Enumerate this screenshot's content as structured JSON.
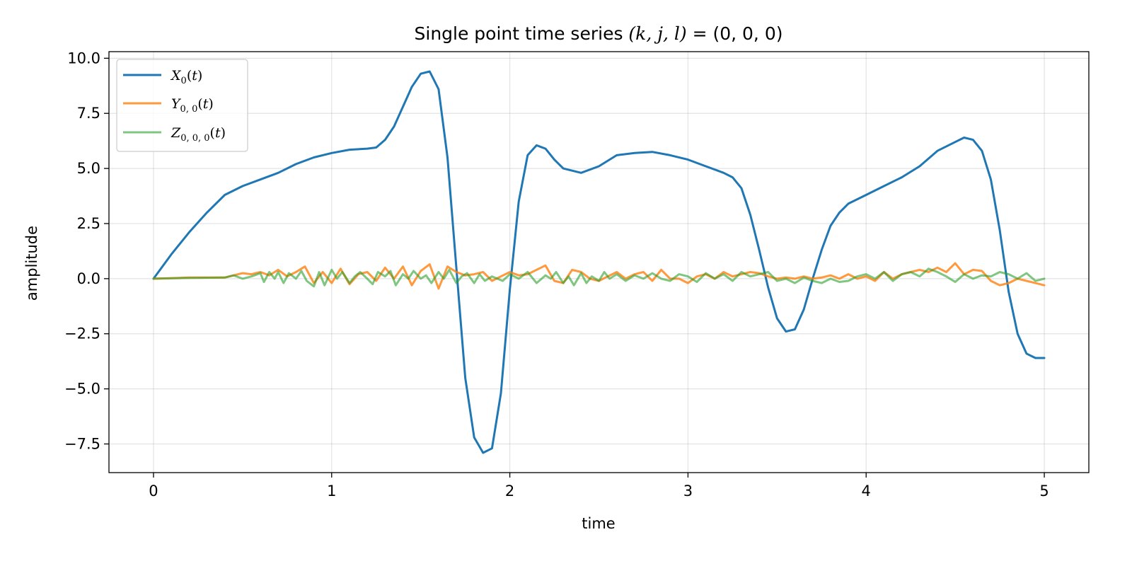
{
  "chart_data": {
    "type": "line",
    "title": "Single point time series (k, j, l) = (0, 0, 0)",
    "xlabel": "time",
    "ylabel": "amplitude",
    "xlim": [
      -0.25,
      5.25
    ],
    "ylim": [
      -8.8,
      10.3
    ],
    "x_ticks": [
      0,
      1,
      2,
      3,
      4,
      5
    ],
    "x_tick_labels": [
      "0",
      "1",
      "2",
      "3",
      "4",
      "5"
    ],
    "y_ticks": [
      10.0,
      7.5,
      5.0,
      2.5,
      0.0,
      -2.5,
      -5.0,
      -7.5
    ],
    "y_tick_labels": [
      "10.0",
      "7.5",
      "5.0",
      "2.5",
      "0.0",
      "−2.5",
      "−5.0",
      "−7.5"
    ],
    "grid": true,
    "legend_position": "top-left",
    "series": [
      {
        "name": "X_0(t)",
        "color": "#1f77b4",
        "x": [
          0,
          0.1,
          0.2,
          0.3,
          0.4,
          0.5,
          0.6,
          0.7,
          0.8,
          0.9,
          1.0,
          1.1,
          1.2,
          1.25,
          1.3,
          1.35,
          1.4,
          1.45,
          1.5,
          1.55,
          1.6,
          1.65,
          1.7,
          1.75,
          1.8,
          1.85,
          1.9,
          1.95,
          2.0,
          2.05,
          2.1,
          2.15,
          2.2,
          2.25,
          2.3,
          2.4,
          2.5,
          2.6,
          2.7,
          2.8,
          2.9,
          3.0,
          3.1,
          3.2,
          3.25,
          3.3,
          3.35,
          3.4,
          3.45,
          3.5,
          3.55,
          3.6,
          3.65,
          3.7,
          3.75,
          3.8,
          3.85,
          3.9,
          4.0,
          4.1,
          4.2,
          4.3,
          4.4,
          4.5,
          4.55,
          4.6,
          4.65,
          4.7,
          4.75,
          4.8,
          4.85,
          4.9,
          4.95,
          5.0
        ],
        "y": [
          0.0,
          1.1,
          2.1,
          3.0,
          3.8,
          4.2,
          4.5,
          4.8,
          5.2,
          5.5,
          5.7,
          5.85,
          5.9,
          5.95,
          6.3,
          6.9,
          7.8,
          8.7,
          9.3,
          9.4,
          8.6,
          5.5,
          0.5,
          -4.5,
          -7.2,
          -7.9,
          -7.7,
          -5.2,
          -0.5,
          3.5,
          5.6,
          6.05,
          5.9,
          5.4,
          5.0,
          4.8,
          5.1,
          5.6,
          5.7,
          5.75,
          5.6,
          5.4,
          5.1,
          4.8,
          4.6,
          4.1,
          2.9,
          1.3,
          -0.4,
          -1.8,
          -2.4,
          -2.3,
          -1.4,
          0.0,
          1.3,
          2.4,
          3.0,
          3.4,
          3.8,
          4.2,
          4.6,
          5.1,
          5.8,
          6.2,
          6.4,
          6.3,
          5.8,
          4.5,
          2.2,
          -0.6,
          -2.5,
          -3.4,
          -3.6,
          -3.6
        ]
      },
      {
        "name": "Y_{0,0}(t)",
        "color": "#ff7f0e",
        "x": [
          0,
          0.2,
          0.4,
          0.45,
          0.5,
          0.55,
          0.6,
          0.65,
          0.7,
          0.75,
          0.8,
          0.85,
          0.9,
          0.95,
          1.0,
          1.05,
          1.1,
          1.15,
          1.2,
          1.25,
          1.3,
          1.35,
          1.4,
          1.45,
          1.5,
          1.55,
          1.6,
          1.65,
          1.7,
          1.75,
          1.8,
          1.85,
          1.9,
          1.95,
          2.0,
          2.05,
          2.1,
          2.15,
          2.2,
          2.25,
          2.3,
          2.35,
          2.4,
          2.45,
          2.5,
          2.55,
          2.6,
          2.65,
          2.7,
          2.75,
          2.8,
          2.85,
          2.9,
          2.95,
          3.0,
          3.05,
          3.1,
          3.15,
          3.2,
          3.25,
          3.3,
          3.35,
          3.4,
          3.45,
          3.5,
          3.55,
          3.6,
          3.65,
          3.7,
          3.75,
          3.8,
          3.85,
          3.9,
          3.95,
          4.0,
          4.05,
          4.1,
          4.15,
          4.2,
          4.25,
          4.3,
          4.35,
          4.4,
          4.45,
          4.5,
          4.55,
          4.6,
          4.65,
          4.7,
          4.75,
          4.8,
          4.85,
          4.9,
          4.95,
          5.0
        ],
        "y": [
          0.0,
          0.05,
          0.05,
          0.15,
          0.25,
          0.2,
          0.3,
          0.15,
          0.4,
          0.1,
          0.3,
          0.55,
          -0.2,
          0.3,
          -0.2,
          0.45,
          -0.25,
          0.2,
          0.3,
          -0.1,
          0.5,
          0.0,
          0.55,
          -0.3,
          0.35,
          0.65,
          -0.45,
          0.55,
          0.3,
          0.15,
          0.2,
          0.3,
          -0.1,
          0.1,
          0.3,
          0.15,
          0.2,
          0.4,
          0.6,
          -0.1,
          -0.2,
          0.4,
          0.3,
          0.0,
          -0.1,
          0.1,
          0.3,
          0.0,
          0.2,
          0.3,
          -0.1,
          0.4,
          0.0,
          0.0,
          -0.2,
          0.1,
          0.2,
          0.0,
          0.3,
          0.1,
          0.2,
          0.3,
          0.25,
          0.1,
          0.0,
          0.05,
          0.0,
          0.1,
          0.0,
          0.05,
          0.15,
          0.0,
          0.2,
          0.0,
          0.1,
          -0.1,
          0.3,
          0.0,
          0.2,
          0.3,
          0.4,
          0.3,
          0.5,
          0.3,
          0.7,
          0.2,
          0.4,
          0.35,
          -0.1,
          -0.3,
          -0.2,
          0.0,
          -0.1,
          -0.2,
          -0.3
        ]
      },
      {
        "name": "Z_{0,0,0}(t)",
        "color": "#2ca02c",
        "x": [
          0,
          0.2,
          0.4,
          0.45,
          0.5,
          0.55,
          0.6,
          0.62,
          0.65,
          0.68,
          0.7,
          0.73,
          0.76,
          0.8,
          0.83,
          0.86,
          0.9,
          0.93,
          0.96,
          1.0,
          1.03,
          1.06,
          1.1,
          1.13,
          1.16,
          1.2,
          1.23,
          1.26,
          1.3,
          1.33,
          1.36,
          1.4,
          1.43,
          1.46,
          1.5,
          1.53,
          1.56,
          1.6,
          1.63,
          1.66,
          1.7,
          1.73,
          1.76,
          1.8,
          1.83,
          1.86,
          1.9,
          1.93,
          1.96,
          2.0,
          2.05,
          2.1,
          2.15,
          2.2,
          2.23,
          2.26,
          2.3,
          2.33,
          2.36,
          2.4,
          2.43,
          2.46,
          2.5,
          2.53,
          2.56,
          2.6,
          2.65,
          2.7,
          2.75,
          2.8,
          2.85,
          2.9,
          2.95,
          3.0,
          3.05,
          3.1,
          3.15,
          3.2,
          3.25,
          3.3,
          3.35,
          3.4,
          3.45,
          3.5,
          3.55,
          3.6,
          3.65,
          3.7,
          3.75,
          3.8,
          3.85,
          3.9,
          3.95,
          4.0,
          4.05,
          4.1,
          4.15,
          4.2,
          4.25,
          4.3,
          4.35,
          4.4,
          4.45,
          4.5,
          4.55,
          4.6,
          4.65,
          4.7,
          4.75,
          4.8,
          4.85,
          4.9,
          4.95,
          5.0
        ],
        "y": [
          0.0,
          0.03,
          0.05,
          0.15,
          0.0,
          0.1,
          0.25,
          -0.15,
          0.3,
          0.0,
          0.3,
          -0.2,
          0.25,
          0.0,
          0.35,
          -0.1,
          -0.35,
          0.3,
          -0.3,
          0.4,
          0.0,
          0.3,
          -0.2,
          0.1,
          0.3,
          0.0,
          -0.25,
          0.3,
          0.1,
          0.35,
          -0.3,
          0.2,
          0.0,
          0.35,
          0.0,
          0.15,
          -0.2,
          0.3,
          0.0,
          0.4,
          -0.2,
          0.1,
          0.25,
          -0.2,
          0.2,
          -0.1,
          0.1,
          0.0,
          -0.1,
          0.2,
          0.0,
          0.3,
          -0.2,
          0.15,
          0.0,
          0.3,
          -0.2,
          0.1,
          -0.3,
          0.25,
          -0.2,
          0.1,
          -0.1,
          0.3,
          0.0,
          0.2,
          -0.1,
          0.15,
          0.0,
          0.25,
          0.0,
          -0.1,
          0.2,
          0.1,
          -0.15,
          0.25,
          0.0,
          0.2,
          -0.1,
          0.3,
          0.1,
          0.2,
          0.3,
          -0.1,
          0.0,
          -0.2,
          0.05,
          -0.1,
          -0.2,
          0.0,
          -0.15,
          -0.1,
          0.1,
          0.2,
          0.0,
          0.3,
          -0.1,
          0.2,
          0.3,
          0.1,
          0.45,
          0.3,
          0.1,
          -0.15,
          0.2,
          0.0,
          0.15,
          0.1,
          0.3,
          0.2,
          0.0,
          0.25,
          -0.1,
          0.0
        ]
      }
    ]
  }
}
